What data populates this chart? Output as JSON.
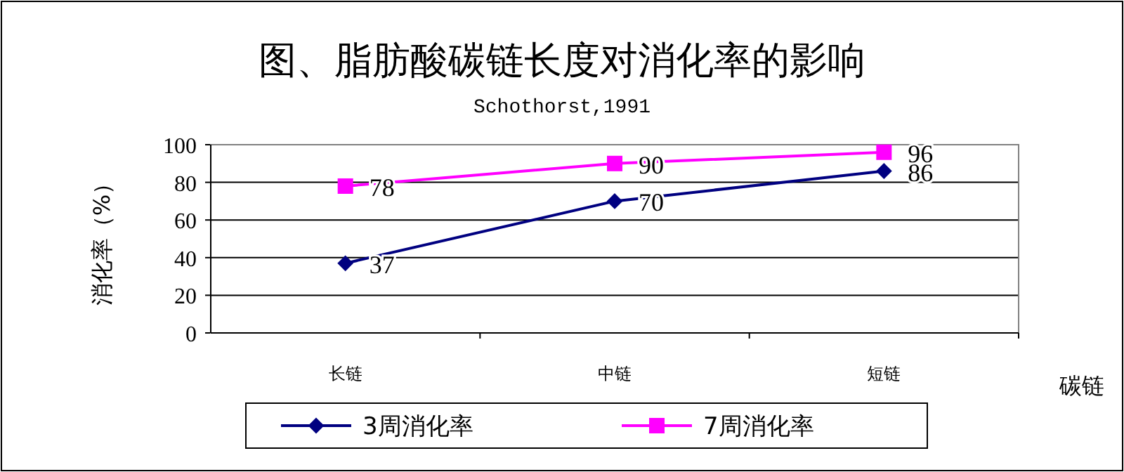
{
  "chart_data": {
    "type": "line",
    "title": "图、脂肪酸碳链长度对消化率的影响",
    "subtitle": "Schothorst,1991",
    "xlabel": "碳链",
    "ylabel": "消化率（%）",
    "categories": [
      "长链",
      "中链",
      "短链"
    ],
    "series": [
      {
        "name": "3周消化率",
        "color": "#000080",
        "marker": "diamond",
        "values": [
          37,
          70,
          86
        ]
      },
      {
        "name": "7周消化率",
        "color": "#ff00ff",
        "marker": "square",
        "values": [
          78,
          90,
          96
        ]
      }
    ],
    "ylim": [
      0,
      100
    ],
    "yticks": [
      0,
      20,
      40,
      60,
      80,
      100
    ],
    "grid": "y",
    "legend": "bottom",
    "data_labels": true,
    "line_style": "solid"
  }
}
